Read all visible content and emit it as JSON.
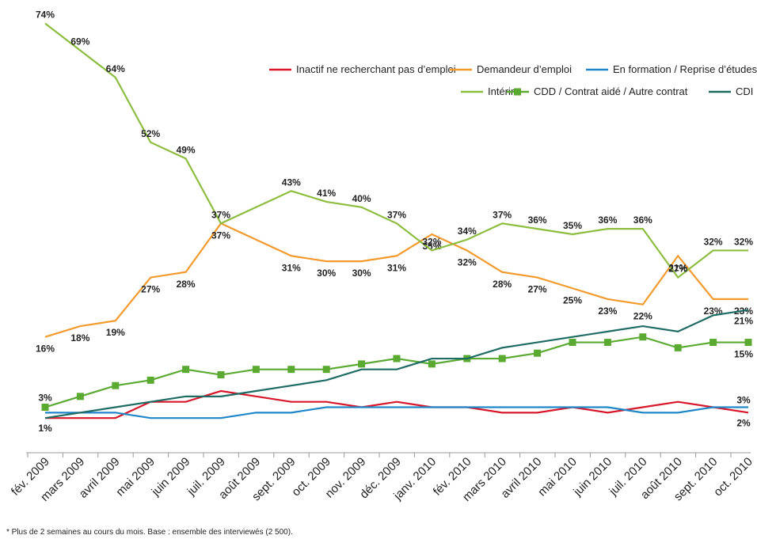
{
  "chart_data": {
    "type": "line",
    "categories": [
      "fév. 2009",
      "mars 2009",
      "avril 2009",
      "mai 2009",
      "juin 2009",
      "juil. 2009",
      "août 2009",
      "sept. 2009",
      "oct. 2009",
      "nov. 2009",
      "déc. 2009",
      "janv. 2010",
      "fév. 2010",
      "mars 2010",
      "avril 2010",
      "mai 2010",
      "juin 2010",
      "juil. 2010",
      "août 2010",
      "sept. 2010",
      "oct. 2010"
    ],
    "ylim": [
      0,
      80
    ],
    "series": [
      {
        "name": "Inactif ne recherchant pas d’emploi",
        "color": "#d7182a",
        "values": [
          1,
          1,
          1,
          4,
          4,
          6,
          5,
          4,
          4,
          3,
          4,
          3,
          3,
          2,
          2,
          3,
          2,
          3,
          4,
          3,
          2
        ],
        "value_labels": [
          "1%",
          null,
          null,
          null,
          null,
          null,
          null,
          null,
          null,
          null,
          null,
          null,
          null,
          null,
          null,
          null,
          null,
          null,
          null,
          null,
          "2%"
        ]
      },
      {
        "name": "Demandeur d’emploi",
        "color": "#f39a2e",
        "values": [
          16,
          18,
          19,
          27,
          28,
          37,
          34,
          31,
          30,
          30,
          31,
          35,
          32,
          28,
          27,
          25,
          23,
          22,
          31,
          23,
          23
        ],
        "value_labels": [
          "16%",
          "18%",
          "19%",
          "27%",
          "28%",
          "37%",
          null,
          "31%",
          "30%",
          "30%",
          "31%",
          "35%",
          "32%",
          "28%",
          "27%",
          "25%",
          "23%",
          "22%",
          "31%",
          "23%",
          "23%"
        ]
      },
      {
        "name": "En formation / Reprise d’études",
        "color": "#1f86c8",
        "values": [
          2,
          2,
          2,
          1,
          1,
          1,
          2,
          2,
          3,
          3,
          3,
          3,
          3,
          3,
          3,
          3,
          3,
          2,
          2,
          3,
          3
        ],
        "value_labels": [
          null,
          null,
          null,
          null,
          null,
          null,
          null,
          null,
          null,
          null,
          null,
          null,
          null,
          null,
          null,
          null,
          null,
          null,
          null,
          null,
          "3%"
        ]
      },
      {
        "name": "Intérim",
        "color": "#8cbd3f",
        "values": [
          74,
          69,
          64,
          52,
          49,
          37,
          40,
          43,
          41,
          40,
          37,
          32,
          34,
          37,
          36,
          35,
          36,
          36,
          27,
          32,
          32
        ],
        "value_labels": [
          "74%",
          "69%",
          "64%",
          "52%",
          "49%",
          "37%",
          null,
          "43%",
          "41%",
          "40%",
          "37%",
          "32%",
          "34%",
          "37%",
          "36%",
          "35%",
          "36%",
          "36%",
          "27%",
          "32%",
          "32%"
        ]
      },
      {
        "name": "CDD / Contrat aidé / Autre contrat",
        "color": "#5aaa32",
        "marker": "square",
        "values": [
          3,
          5,
          7,
          8,
          10,
          9,
          10,
          10,
          10,
          11,
          12,
          11,
          12,
          12,
          13,
          15,
          15,
          16,
          14,
          15,
          15
        ],
        "value_labels": [
          "3%",
          null,
          null,
          null,
          null,
          null,
          null,
          null,
          null,
          null,
          null,
          null,
          null,
          null,
          null,
          null,
          null,
          null,
          null,
          null,
          "15%"
        ]
      },
      {
        "name": "CDI",
        "color": "#1e6b63",
        "values": [
          1,
          2,
          3,
          4,
          5,
          5,
          6,
          7,
          8,
          10,
          10,
          12,
          12,
          14,
          15,
          16,
          17,
          18,
          17,
          20,
          21
        ],
        "value_labels": [
          null,
          null,
          null,
          null,
          null,
          null,
          null,
          null,
          null,
          null,
          null,
          null,
          null,
          null,
          null,
          null,
          null,
          null,
          null,
          null,
          "21%"
        ]
      }
    ],
    "footnote": "* Plus de 2 semaines au cours du mois. Base : ensemble des interviewés (2 500)."
  }
}
